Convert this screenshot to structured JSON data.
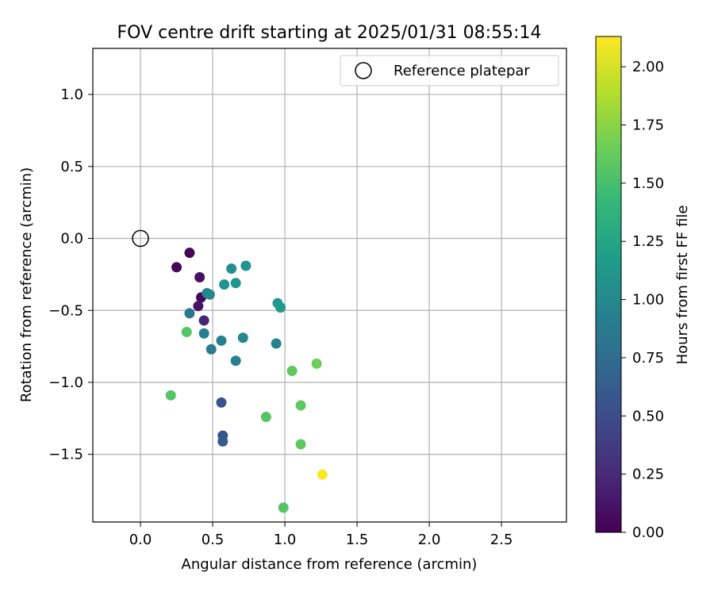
{
  "chart_data": {
    "type": "scatter",
    "title": "FOV centre drift starting at 2025/01/31 08:55:14",
    "xlabel": "Angular distance from reference (arcmin)",
    "ylabel": "Rotation from reference (arcmin)",
    "xlim": [
      -0.33,
      2.95
    ],
    "ylim": [
      -1.97,
      1.32
    ],
    "xticks": [
      0.0,
      0.5,
      1.0,
      1.5,
      2.0,
      2.5
    ],
    "xtick_labels": [
      "0.0",
      "0.5",
      "1.0",
      "1.5",
      "2.0",
      "2.5"
    ],
    "yticks": [
      1.0,
      0.5,
      0.0,
      -0.5,
      -1.0,
      -1.5
    ],
    "ytick_labels": [
      "1.0",
      "0.5",
      "0.0",
      "−0.5",
      "−1.0",
      "−1.5"
    ],
    "grid": true,
    "legend": {
      "position": "top-right",
      "label": "Reference platepar"
    },
    "reference_point": {
      "x": 0.0,
      "y": 0.0
    },
    "colorbar": {
      "label": "Hours from first FF file",
      "range": [
        0.0,
        2.13
      ],
      "ticks": [
        0.0,
        0.25,
        0.5,
        0.75,
        1.0,
        1.25,
        1.5,
        1.75,
        2.0
      ],
      "tick_labels": [
        "0.00",
        "0.25",
        "0.50",
        "0.75",
        "1.00",
        "1.25",
        "1.50",
        "1.75",
        "2.00"
      ],
      "colormap": [
        "#440154",
        "#482878",
        "#3e4989",
        "#31688e",
        "#26828e",
        "#1f9e89",
        "#35b779",
        "#6ece58",
        "#b5de2b",
        "#fde725"
      ]
    },
    "points": [
      {
        "x": 0.34,
        "y": -0.1,
        "c": 0.02
      },
      {
        "x": 0.25,
        "y": -0.2,
        "c": 0.03
      },
      {
        "x": 0.41,
        "y": -0.27,
        "c": 0.1
      },
      {
        "x": 0.42,
        "y": -0.41,
        "c": 0.03
      },
      {
        "x": 0.4,
        "y": -0.47,
        "c": 0.12
      },
      {
        "x": 0.44,
        "y": -0.57,
        "c": 0.22
      },
      {
        "x": 0.56,
        "y": -1.14,
        "c": 0.55
      },
      {
        "x": 0.57,
        "y": -1.37,
        "c": 0.55
      },
      {
        "x": 0.57,
        "y": -1.41,
        "c": 0.6
      },
      {
        "x": 0.34,
        "y": -0.52,
        "c": 0.85
      },
      {
        "x": 0.44,
        "y": -0.66,
        "c": 0.9
      },
      {
        "x": 0.49,
        "y": -0.77,
        "c": 0.9
      },
      {
        "x": 0.56,
        "y": -0.71,
        "c": 0.95
      },
      {
        "x": 0.46,
        "y": -0.38,
        "c": 0.95
      },
      {
        "x": 0.48,
        "y": -0.39,
        "c": 1.0
      },
      {
        "x": 0.66,
        "y": -0.85,
        "c": 0.95
      },
      {
        "x": 0.71,
        "y": -0.69,
        "c": 1.0
      },
      {
        "x": 0.94,
        "y": -0.73,
        "c": 0.95
      },
      {
        "x": 0.63,
        "y": -0.21,
        "c": 1.05
      },
      {
        "x": 0.58,
        "y": -0.32,
        "c": 1.1
      },
      {
        "x": 0.66,
        "y": -0.31,
        "c": 1.1
      },
      {
        "x": 0.73,
        "y": -0.19,
        "c": 1.1
      },
      {
        "x": 0.95,
        "y": -0.45,
        "c": 1.15
      },
      {
        "x": 0.97,
        "y": -0.48,
        "c": 1.15
      },
      {
        "x": 0.32,
        "y": -0.65,
        "c": 1.55
      },
      {
        "x": 0.21,
        "y": -1.09,
        "c": 1.55
      },
      {
        "x": 0.87,
        "y": -1.24,
        "c": 1.55
      },
      {
        "x": 1.05,
        "y": -0.92,
        "c": 1.6
      },
      {
        "x": 1.22,
        "y": -0.87,
        "c": 1.65
      },
      {
        "x": 1.11,
        "y": -1.16,
        "c": 1.6
      },
      {
        "x": 1.11,
        "y": -1.43,
        "c": 1.6
      },
      {
        "x": 0.99,
        "y": -1.87,
        "c": 1.55
      },
      {
        "x": 1.26,
        "y": -1.64,
        "c": 2.13
      }
    ]
  }
}
